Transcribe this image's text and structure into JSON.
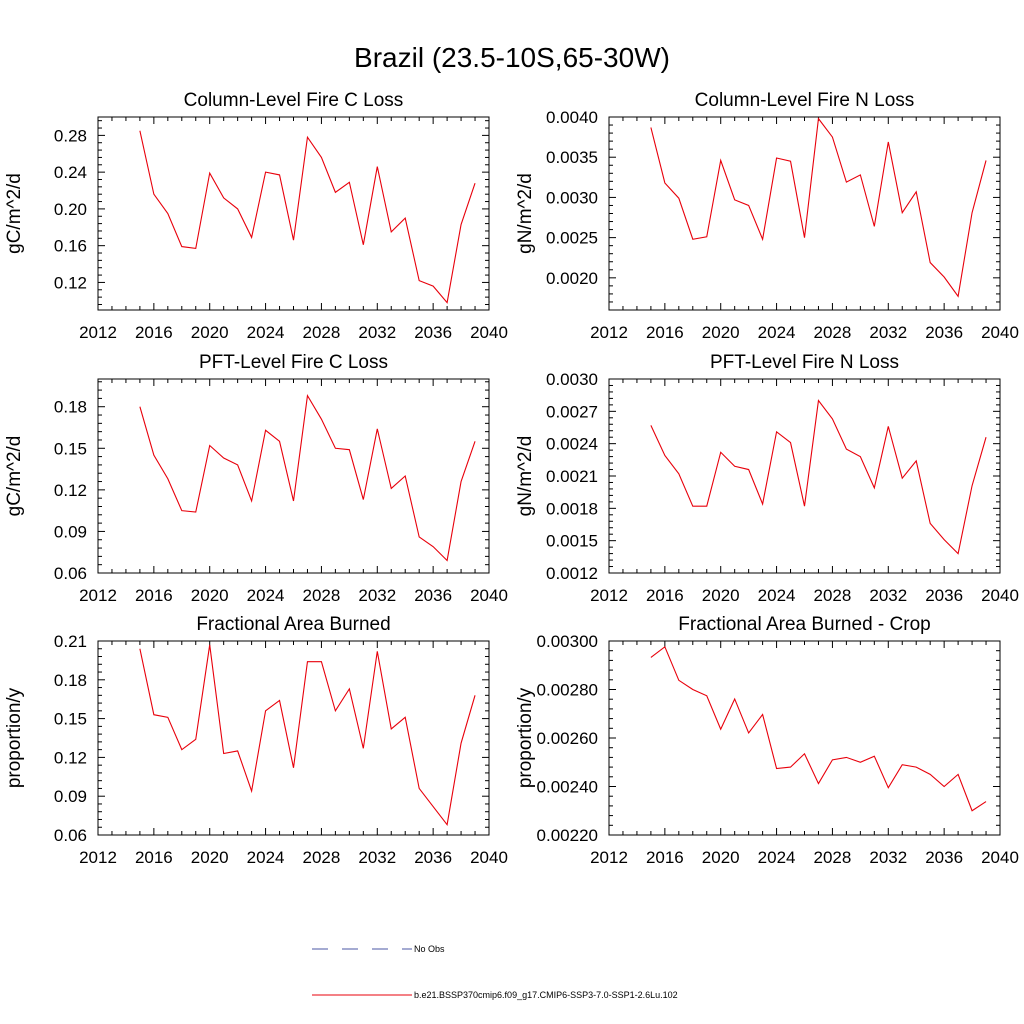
{
  "figure_title": "Brazil (23.5-10S,65-30W)",
  "legend": [
    {
      "label": "No Obs",
      "color": "#4b57a6",
      "style": "dashed"
    },
    {
      "label": "b.e21.BSSP370cmip6.f09_g17.CMIP6-SSP3-7.0-SSP1-2.6Lu.102",
      "color": "#e8000b",
      "style": "solid"
    }
  ],
  "chart_data": [
    {
      "type": "line",
      "title": "Column-Level Fire C Loss",
      "ylabel": "gC/m^2/d",
      "xlabel": "",
      "xlim": [
        2012,
        2040
      ],
      "ylim": [
        0.09,
        0.3
      ],
      "xticks": [
        "2012",
        "2016",
        "2020",
        "2024",
        "2028",
        "2032",
        "2036",
        "2040"
      ],
      "yticks": [
        "0.12",
        "0.16",
        "0.20",
        "0.24",
        "0.28"
      ],
      "x": [
        2015,
        2016,
        2017,
        2018,
        2019,
        2020,
        2021,
        2022,
        2023,
        2024,
        2025,
        2026,
        2027,
        2028,
        2029,
        2030,
        2031,
        2032,
        2033,
        2034,
        2035,
        2036,
        2037,
        2038,
        2039
      ],
      "series": [
        {
          "color": "#e8000b",
          "values": [
            0.285,
            0.216,
            0.195,
            0.159,
            0.157,
            0.239,
            0.212,
            0.2,
            0.169,
            0.24,
            0.237,
            0.166,
            0.278,
            0.256,
            0.218,
            0.229,
            0.161,
            0.246,
            0.175,
            0.19,
            0.122,
            0.116,
            0.098,
            0.183,
            0.228
          ]
        }
      ]
    },
    {
      "type": "line",
      "title": "Column-Level Fire N Loss",
      "ylabel": "gN/m^2/d",
      "xlabel": "",
      "xlim": [
        2012,
        2040
      ],
      "ylim": [
        0.0016,
        0.004
      ],
      "xticks": [
        "2012",
        "2016",
        "2020",
        "2024",
        "2028",
        "2032",
        "2036",
        "2040"
      ],
      "yticks": [
        "0.0020",
        "0.0025",
        "0.0030",
        "0.0035",
        "0.0040"
      ],
      "x": [
        2015,
        2016,
        2017,
        2018,
        2019,
        2020,
        2021,
        2022,
        2023,
        2024,
        2025,
        2026,
        2027,
        2028,
        2029,
        2030,
        2031,
        2032,
        2033,
        2034,
        2035,
        2036,
        2037,
        2038,
        2039
      ],
      "series": [
        {
          "color": "#e8000b",
          "values": [
            0.00387,
            0.00318,
            0.00299,
            0.00248,
            0.00251,
            0.00346,
            0.00297,
            0.0029,
            0.00248,
            0.00349,
            0.00345,
            0.0025,
            0.00398,
            0.00375,
            0.00319,
            0.00328,
            0.00264,
            0.00369,
            0.00281,
            0.00307,
            0.00219,
            0.00201,
            0.00177,
            0.00281,
            0.00346
          ]
        }
      ]
    },
    {
      "type": "line",
      "title": "PFT-Level Fire C Loss",
      "ylabel": "gC/m^2/d",
      "xlabel": "",
      "xlim": [
        2012,
        2040
      ],
      "ylim": [
        0.06,
        0.2
      ],
      "xticks": [
        "2012",
        "2016",
        "2020",
        "2024",
        "2028",
        "2032",
        "2036",
        "2040"
      ],
      "yticks": [
        "0.06",
        "0.09",
        "0.12",
        "0.15",
        "0.18"
      ],
      "x": [
        2015,
        2016,
        2017,
        2018,
        2019,
        2020,
        2021,
        2022,
        2023,
        2024,
        2025,
        2026,
        2027,
        2028,
        2029,
        2030,
        2031,
        2032,
        2033,
        2034,
        2035,
        2036,
        2037,
        2038,
        2039
      ],
      "series": [
        {
          "color": "#e8000b",
          "values": [
            0.18,
            0.145,
            0.128,
            0.105,
            0.104,
            0.152,
            0.143,
            0.138,
            0.112,
            0.163,
            0.155,
            0.112,
            0.188,
            0.171,
            0.15,
            0.149,
            0.113,
            0.164,
            0.121,
            0.13,
            0.086,
            0.079,
            0.069,
            0.126,
            0.155
          ]
        }
      ]
    },
    {
      "type": "line",
      "title": "PFT-Level Fire N Loss",
      "ylabel": "gN/m^2/d",
      "xlabel": "",
      "xlim": [
        2012,
        2040
      ],
      "ylim": [
        0.0012,
        0.003
      ],
      "xticks": [
        "2012",
        "2016",
        "2020",
        "2024",
        "2028",
        "2032",
        "2036",
        "2040"
      ],
      "yticks": [
        "0.0012",
        "0.0015",
        "0.0018",
        "0.0021",
        "0.0024",
        "0.0027",
        "0.0030"
      ],
      "x": [
        2015,
        2016,
        2017,
        2018,
        2019,
        2020,
        2021,
        2022,
        2023,
        2024,
        2025,
        2026,
        2027,
        2028,
        2029,
        2030,
        2031,
        2032,
        2033,
        2034,
        2035,
        2036,
        2037,
        2038,
        2039
      ],
      "series": [
        {
          "color": "#e8000b",
          "values": [
            0.00257,
            0.00229,
            0.00212,
            0.00182,
            0.00182,
            0.00232,
            0.00219,
            0.00216,
            0.00184,
            0.00251,
            0.00241,
            0.00182,
            0.0028,
            0.00263,
            0.00235,
            0.00228,
            0.00199,
            0.00256,
            0.00208,
            0.00224,
            0.00166,
            0.00151,
            0.00138,
            0.00201,
            0.00246
          ]
        }
      ]
    },
    {
      "type": "line",
      "title": "Fractional Area Burned",
      "ylabel": "proportion/y",
      "xlabel": "",
      "xlim": [
        2012,
        2040
      ],
      "ylim": [
        0.06,
        0.21
      ],
      "xticks": [
        "2012",
        "2016",
        "2020",
        "2024",
        "2028",
        "2032",
        "2036",
        "2040"
      ],
      "yticks": [
        "0.06",
        "0.09",
        "0.12",
        "0.15",
        "0.18",
        "0.21"
      ],
      "x": [
        2015,
        2016,
        2017,
        2018,
        2019,
        2020,
        2021,
        2022,
        2023,
        2024,
        2025,
        2026,
        2027,
        2028,
        2029,
        2030,
        2031,
        2032,
        2033,
        2034,
        2035,
        2036,
        2037,
        2038,
        2039
      ],
      "series": [
        {
          "color": "#e8000b",
          "values": [
            0.204,
            0.153,
            0.151,
            0.126,
            0.134,
            0.207,
            0.123,
            0.125,
            0.094,
            0.156,
            0.164,
            0.112,
            0.194,
            0.194,
            0.156,
            0.173,
            0.127,
            0.202,
            0.142,
            0.151,
            0.096,
            0.082,
            0.068,
            0.131,
            0.168
          ]
        }
      ]
    },
    {
      "type": "line",
      "title": "Fractional Area Burned - Crop",
      "ylabel": "proportion/y",
      "xlabel": "",
      "xlim": [
        2012,
        2040
      ],
      "ylim": [
        0.0022,
        0.003
      ],
      "xticks": [
        "2012",
        "2016",
        "2020",
        "2024",
        "2028",
        "2032",
        "2036",
        "2040"
      ],
      "yticks": [
        "0.00220",
        "0.00240",
        "0.00260",
        "0.00280",
        "0.00300"
      ],
      "x": [
        2015,
        2016,
        2017,
        2018,
        2019,
        2020,
        2021,
        2022,
        2023,
        2024,
        2025,
        2026,
        2027,
        2028,
        2029,
        2030,
        2031,
        2032,
        2033,
        2034,
        2035,
        2036,
        2037,
        2038,
        2039
      ],
      "series": [
        {
          "color": "#e8000b",
          "values": [
            0.002932,
            0.002976,
            0.002838,
            0.0028,
            0.002774,
            0.002636,
            0.002761,
            0.002621,
            0.002697,
            0.002474,
            0.00248,
            0.002535,
            0.002412,
            0.00251,
            0.00252,
            0.0025,
            0.002525,
            0.002395,
            0.00249,
            0.00248,
            0.00245,
            0.0024,
            0.00245,
            0.0023,
            0.002338
          ]
        }
      ]
    }
  ]
}
